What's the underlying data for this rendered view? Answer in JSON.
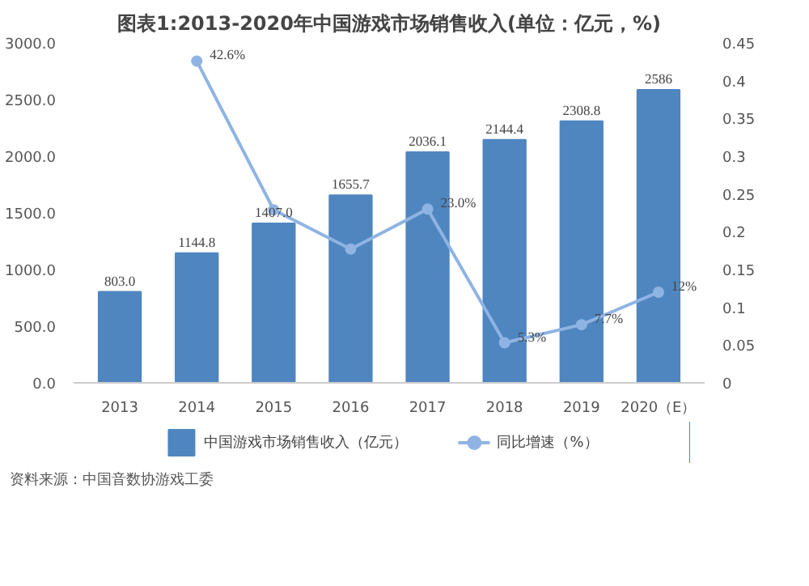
{
  "chart_data": {
    "type": "bar",
    "title": "图表1:2013-2020年中国游戏市场销售收入(单位：亿元，%)",
    "categories": [
      "2013",
      "2014",
      "2015",
      "2016",
      "2017",
      "2018",
      "2019",
      "2020（E）"
    ],
    "series": [
      {
        "name": "中国游戏市场销售收入（亿元）",
        "color": "#4f86c0",
        "values": [
          803.0,
          1144.8,
          1407.0,
          1655.7,
          2036.1,
          2144.4,
          2308.8,
          2586
        ],
        "value_labels": [
          "803.0",
          "1144.8",
          "1407.0",
          "1655.7",
          "2036.1",
          "2144.4",
          "2308.8",
          "2586"
        ]
      },
      {
        "name": "同比增速（%）",
        "type": "line",
        "axis": "y2",
        "marker": "circle",
        "color": "#8fb4e3",
        "values": [
          null,
          0.426,
          0.229,
          0.177,
          0.23,
          0.053,
          0.077,
          0.12
        ],
        "value_labels": [
          null,
          "42.6%",
          null,
          null,
          "23.0%",
          "5.3%",
          "7.7%",
          "12%"
        ]
      }
    ],
    "ylim": [
      0,
      3000
    ],
    "yticks": [
      {
        "value": 0,
        "label": "0.0"
      },
      {
        "value": 500,
        "label": "500.0"
      },
      {
        "value": 1000,
        "label": "1000.0"
      },
      {
        "value": 1500,
        "label": "1500.0"
      },
      {
        "value": 2000,
        "label": "2000.0"
      },
      {
        "value": 2500,
        "label": "2500.0"
      },
      {
        "value": 3000,
        "label": "3000.0"
      }
    ],
    "y2lim": [
      0,
      0.45
    ],
    "y2ticks": [
      0,
      0.05,
      0.1,
      0.15,
      0.2,
      0.25,
      0.3,
      0.35,
      0.4,
      0.45
    ],
    "grid": false,
    "legend": "bottom",
    "annotations": [
      "资料来源：中国音数协游戏工委"
    ]
  }
}
